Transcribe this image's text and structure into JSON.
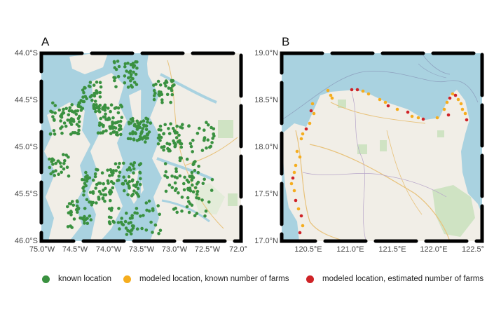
{
  "legend": {
    "items": [
      {
        "label": "known location",
        "color": "#3a9140"
      },
      {
        "label": "modeled location, known number of farms",
        "color": "#f5ad1e"
      },
      {
        "label": "modeled location, estimated number of farms",
        "color": "#cf2327"
      }
    ]
  },
  "colors": {
    "water": "#a9d2e0",
    "land": "#f1eee7",
    "frame": "#000000"
  },
  "panels": [
    {
      "letter": "A",
      "region_hint": "Aysén, southern Chile (fjords and islands)",
      "y_ticks": [
        "44.0°S",
        "44.5°S",
        "45.0°S",
        "45.5°S",
        "46.0°S"
      ],
      "x_ticks": [
        "75.0°W",
        "74.5°W",
        "74.0°W",
        "73.5°W",
        "73.0°W",
        "72.5°W",
        "72.0°"
      ],
      "lon_range": [
        -75.0,
        -72.0
      ],
      "lat_range": [
        -46.0,
        -44.0
      ]
    },
    {
      "letter": "B",
      "region_hint": "Northern Luzon, Philippines (coastline)",
      "y_ticks": [
        "19.0°N",
        "18.5°N",
        "18.0°N",
        "17.5°N",
        "17.0°N"
      ],
      "x_ticks": [
        "120.5°E",
        "121.0°E",
        "121.5°E",
        "122.0°E",
        "122.5°"
      ],
      "lon_range": [
        120.25,
        122.5
      ],
      "lat_range": [
        17.0,
        19.0
      ]
    }
  ]
}
